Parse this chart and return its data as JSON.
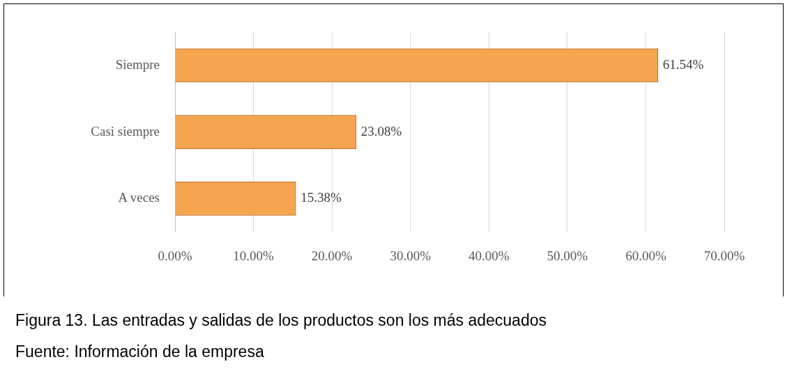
{
  "chart_data": {
    "type": "bar",
    "orientation": "horizontal",
    "categories": [
      "Siempre",
      "Casi siempre",
      "A veces"
    ],
    "values": [
      61.54,
      23.08,
      15.38
    ],
    "value_labels": [
      "61.54%",
      "23.08%",
      "15.38%"
    ],
    "color": "#f5a54f",
    "xlim": [
      0,
      70
    ],
    "xticks": [
      {
        "value": 0,
        "label": "0.00%"
      },
      {
        "value": 10,
        "label": "10.00%"
      },
      {
        "value": 20,
        "label": "20.00%"
      },
      {
        "value": 30,
        "label": "30.00%"
      },
      {
        "value": 40,
        "label": "40.00%"
      },
      {
        "value": 50,
        "label": "50.00%"
      },
      {
        "value": 60,
        "label": "60.00%"
      },
      {
        "value": 70,
        "label": "70.00%"
      }
    ],
    "grid": "x",
    "legend": false,
    "annotations": [
      "Figura 13. Las entradas y salidas de los productos son los más adecuados",
      "Fuente: Información de la empresa"
    ]
  }
}
